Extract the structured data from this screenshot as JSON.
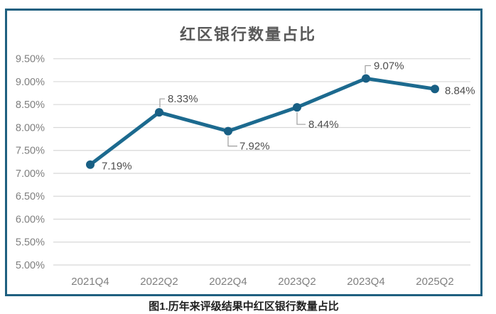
{
  "figure": {
    "caption": "图1.历年来评级结果中红区银行数量占比"
  },
  "chart_data": {
    "type": "line",
    "title": "红区银行数量占比",
    "categories": [
      "2021Q4",
      "2022Q2",
      "2022Q4",
      "2023Q2",
      "2023Q4",
      "2025Q2"
    ],
    "values": [
      7.19,
      8.33,
      7.92,
      8.44,
      9.07,
      8.84
    ],
    "data_labels": [
      "7.19%",
      "8.33%",
      "7.92%",
      "8.44%",
      "9.07%",
      "8.84%"
    ],
    "xlabel": "",
    "ylabel": "",
    "ylim": [
      5.0,
      9.5
    ],
    "ytick_step": 0.5,
    "ytick_labels": [
      "5.00%",
      "5.50%",
      "6.00%",
      "6.50%",
      "7.00%",
      "7.50%",
      "8.00%",
      "8.50%",
      "9.00%",
      "9.50%"
    ],
    "grid": true,
    "legend": false,
    "colors": {
      "line": "#1c6a8f",
      "marker": "#185f84",
      "grid": "#d8d8d8",
      "tick_label": "#7f7f7f",
      "data_label": "#4d4d4d",
      "leader_line": "#9e9e9e",
      "title": "#595959",
      "frame_border": "#1f6080"
    }
  }
}
